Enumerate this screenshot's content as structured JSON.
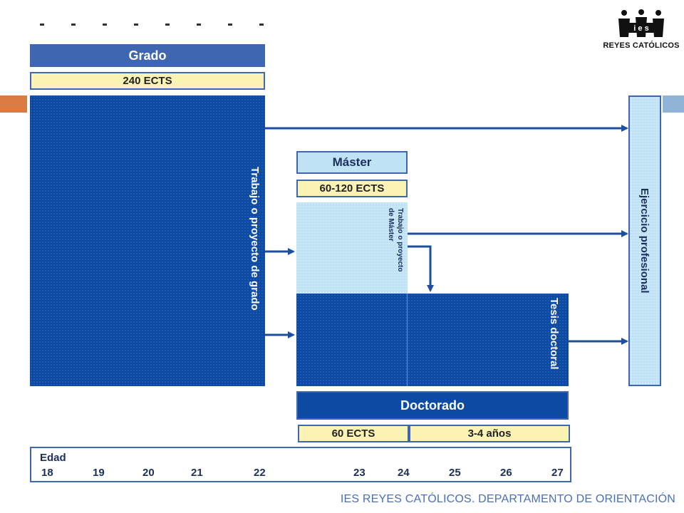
{
  "logo": {
    "text": "REYES CATÓLICOS",
    "icon": "crown-people-icon"
  },
  "grado": {
    "title": "Grado",
    "ects": "240 ECTS",
    "work": "Trabajo o proyecto de grado"
  },
  "master": {
    "title": "Máster",
    "ects": "60-120 ECTS",
    "work_line1": "Trabajo o proyecto",
    "work_line2": "de Máster"
  },
  "doctorado": {
    "title": "Doctorado",
    "thesis": "Tesis doctoral",
    "ects": "60 ECTS",
    "years": "3-4 años"
  },
  "professional": {
    "label": "Ejercicio profesional"
  },
  "age": {
    "label": "Edad",
    "values": [
      "18",
      "19",
      "20",
      "21",
      "22",
      "23",
      "24",
      "25",
      "26",
      "27"
    ]
  },
  "footer": "IES REYES CATÓLICOS. DEPARTAMENTO DE ORIENTACIÓN",
  "colors": {
    "dark_blue": "#0d4aa3",
    "header_blue": "#3f66b0",
    "light_blue": "#bfe3f5",
    "ects_yellow": "#fbf3b3",
    "accent_orange": "#d97b42"
  }
}
